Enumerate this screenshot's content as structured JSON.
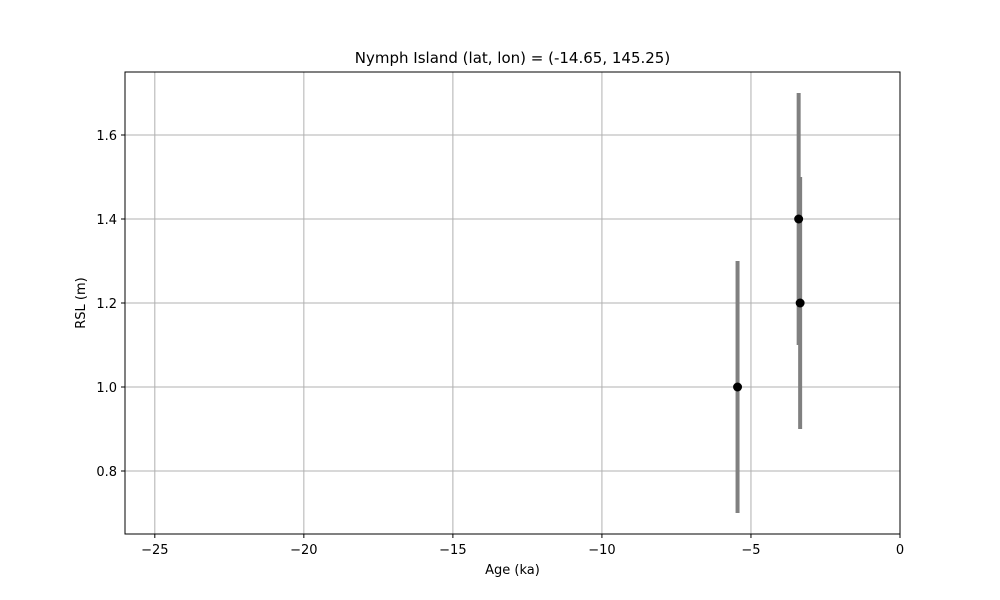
{
  "chart_data": {
    "type": "scatter",
    "title": "Nymph Island (lat, lon) = (-14.65, 145.25)",
    "xlabel": "Age (ka)",
    "ylabel": "RSL (m)",
    "xlim": [
      -26,
      0
    ],
    "ylim": [
      0.65,
      1.75
    ],
    "xticks": [
      -25,
      -20,
      -15,
      -10,
      -5,
      0
    ],
    "xtick_labels": [
      "−25",
      "−20",
      "−15",
      "−10",
      "−5",
      "0"
    ],
    "yticks": [
      0.8,
      1.0,
      1.2,
      1.4,
      1.6
    ],
    "ytick_labels": [
      "0.8",
      "1.0",
      "1.2",
      "1.4",
      "1.6"
    ],
    "grid": true,
    "points": [
      {
        "x": -5.45,
        "y": 1.0,
        "ylow": 0.7,
        "yhigh": 1.3
      },
      {
        "x": -3.4,
        "y": 1.4,
        "ylow": 1.1,
        "yhigh": 1.7
      },
      {
        "x": -3.35,
        "y": 1.2,
        "ylow": 0.9,
        "yhigh": 1.5
      }
    ],
    "colors": {
      "marker": "#000000",
      "errorbar": "#808080",
      "grid": "#b0b0b0"
    }
  }
}
